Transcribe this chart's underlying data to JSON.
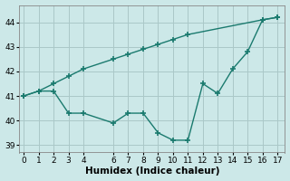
{
  "xlabel": "Humidex (Indice chaleur)",
  "background_color": "#cce8e8",
  "grid_color": "#aac8c8",
  "line_color": "#1a7a6e",
  "x_jagged": [
    0,
    1,
    2,
    3,
    4,
    6,
    7,
    8,
    9,
    10,
    11,
    12,
    13,
    14,
    15,
    16,
    17
  ],
  "y_jagged": [
    41.0,
    41.2,
    41.2,
    40.3,
    40.3,
    39.9,
    40.3,
    40.3,
    39.5,
    39.2,
    39.2,
    41.5,
    41.1,
    42.1,
    42.8,
    44.1,
    44.2
  ],
  "x_diag": [
    0,
    1,
    2,
    3,
    4,
    6,
    7,
    8,
    9,
    10,
    11,
    16,
    17
  ],
  "y_diag": [
    41.0,
    41.2,
    41.5,
    41.8,
    42.1,
    42.5,
    42.7,
    42.9,
    43.1,
    43.3,
    43.5,
    44.1,
    44.2
  ],
  "ylim": [
    38.7,
    44.7
  ],
  "yticks": [
    39,
    40,
    41,
    42,
    43,
    44
  ],
  "xticks": [
    0,
    1,
    2,
    3,
    4,
    6,
    7,
    8,
    9,
    10,
    11,
    12,
    13,
    14,
    15,
    16,
    17
  ],
  "xlim": [
    -0.3,
    17.5
  ],
  "linewidth": 1.0,
  "markersize": 4,
  "markeredgewidth": 1.2,
  "tick_labelsize": 6.5,
  "xlabel_fontsize": 7.5
}
